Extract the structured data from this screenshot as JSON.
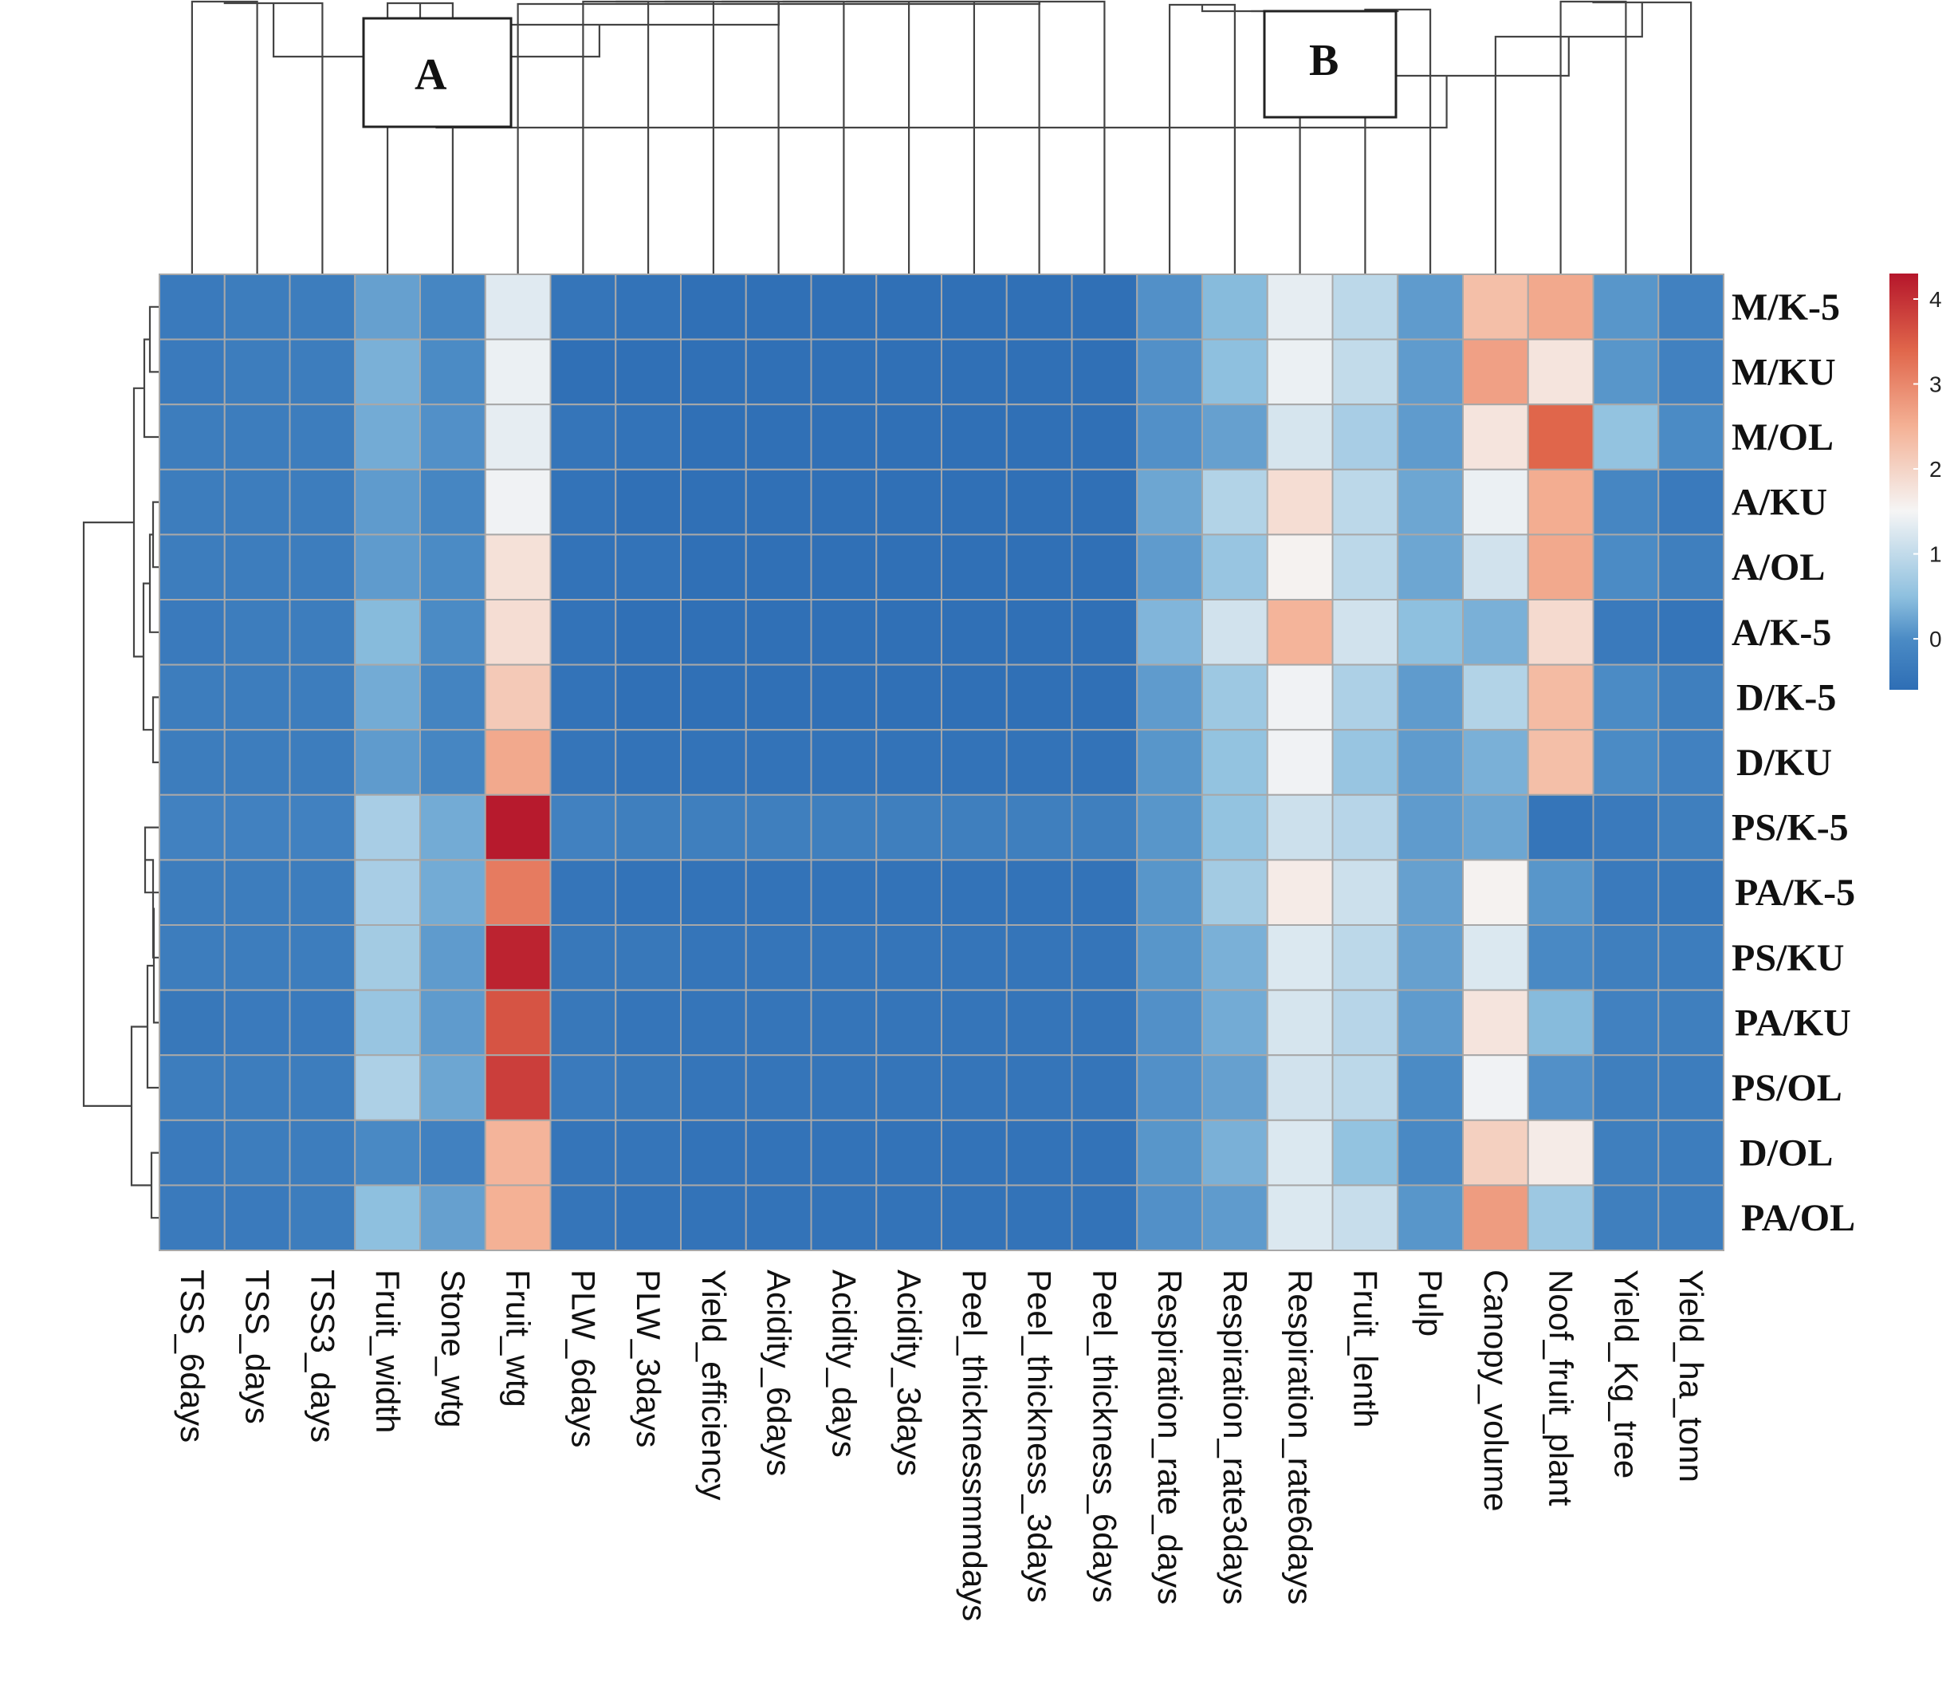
{
  "chart_data": {
    "type": "heatmap",
    "title": "",
    "cluster_labels": [
      "A",
      "B"
    ],
    "columns": [
      "TSS_6days",
      "TSS_days",
      "TSS3_days",
      "Fruit_width",
      "Stone_wtg",
      "Fruit_wtg",
      "PLW_6days",
      "PLW_3days",
      "Yield_efficiency",
      "Acidity_6days",
      "Acidity_days",
      "Acidity_3days",
      "Peel_thicknessmmdays",
      "Peel_thickness_3days",
      "Peel_thickness_6days",
      "Respiration_rate_days",
      "Respiration_rate3days",
      "Respiration_rate6days",
      "Fruit_lenth",
      "Pulp",
      "Canopy_volume",
      "Noof_fruit_plant",
      "Yield_Kg_tree",
      "Yield_ha_tonn"
    ],
    "rows": [
      "M/K-5",
      "M/KU",
      "M/OL",
      "A/KU",
      "A/OL",
      "A/K-5",
      "D/K-5",
      "D/KU",
      "PS/K-5",
      "PA/K-5",
      "PS/KU",
      "PA/KU",
      "PS/OL",
      "D/OL",
      "PA/OL"
    ],
    "values": [
      [
        -0.35,
        -0.3,
        -0.3,
        0.2,
        -0.1,
        1.3,
        -0.45,
        -0.5,
        -0.55,
        -0.55,
        -0.55,
        -0.55,
        -0.55,
        -0.55,
        -0.55,
        0.05,
        0.45,
        1.35,
        0.95,
        0.15,
        2.3,
        2.6,
        0.1,
        -0.2
      ],
      [
        -0.35,
        -0.3,
        -0.3,
        0.35,
        0.0,
        1.4,
        -0.55,
        -0.55,
        -0.55,
        -0.55,
        -0.55,
        -0.55,
        -0.55,
        -0.55,
        -0.55,
        0.05,
        0.5,
        1.4,
        1.0,
        0.15,
        2.7,
        1.75,
        0.1,
        -0.2
      ],
      [
        -0.3,
        -0.3,
        -0.3,
        0.3,
        0.05,
        1.35,
        -0.45,
        -0.5,
        -0.55,
        -0.55,
        -0.55,
        -0.55,
        -0.55,
        -0.55,
        -0.55,
        0.05,
        0.2,
        1.2,
        0.75,
        0.15,
        1.75,
        3.4,
        0.55,
        0.0
      ],
      [
        -0.3,
        -0.3,
        -0.3,
        0.15,
        -0.1,
        1.45,
        -0.5,
        -0.55,
        -0.55,
        -0.55,
        -0.55,
        -0.55,
        -0.55,
        -0.55,
        -0.55,
        0.25,
        0.85,
        1.85,
        0.95,
        0.25,
        1.4,
        2.55,
        -0.1,
        -0.35
      ],
      [
        -0.3,
        -0.3,
        -0.3,
        0.15,
        0.0,
        1.8,
        -0.5,
        -0.5,
        -0.55,
        -0.55,
        -0.55,
        -0.55,
        -0.55,
        -0.55,
        -0.55,
        0.15,
        0.6,
        1.55,
        0.95,
        0.25,
        1.15,
        2.6,
        0.0,
        -0.25
      ],
      [
        -0.35,
        -0.3,
        -0.3,
        0.45,
        0.0,
        1.85,
        -0.5,
        -0.55,
        -0.55,
        -0.55,
        -0.55,
        -0.55,
        -0.55,
        -0.55,
        -0.55,
        0.4,
        1.15,
        2.45,
        1.15,
        0.5,
        0.35,
        1.9,
        -0.35,
        -0.45
      ],
      [
        -0.3,
        -0.3,
        -0.3,
        0.3,
        -0.15,
        2.15,
        -0.5,
        -0.55,
        -0.55,
        -0.55,
        -0.55,
        -0.55,
        -0.55,
        -0.55,
        -0.55,
        0.15,
        0.65,
        1.45,
        0.8,
        0.15,
        0.85,
        2.35,
        0.0,
        -0.25
      ],
      [
        -0.3,
        -0.3,
        -0.3,
        0.15,
        -0.1,
        2.6,
        -0.45,
        -0.5,
        -0.5,
        -0.5,
        -0.5,
        -0.5,
        -0.5,
        -0.5,
        -0.5,
        0.1,
        0.55,
        1.45,
        0.6,
        0.15,
        0.35,
        2.3,
        0.0,
        -0.2
      ],
      [
        -0.2,
        -0.2,
        -0.2,
        0.75,
        0.3,
        4.25,
        -0.2,
        -0.25,
        -0.25,
        -0.25,
        -0.25,
        -0.25,
        -0.25,
        -0.25,
        -0.25,
        0.1,
        0.55,
        1.1,
        0.9,
        0.15,
        0.25,
        -0.45,
        -0.35,
        -0.25
      ],
      [
        -0.3,
        -0.3,
        -0.3,
        0.75,
        0.3,
        3.15,
        -0.45,
        -0.5,
        -0.5,
        -0.5,
        -0.5,
        -0.5,
        -0.5,
        -0.5,
        -0.5,
        0.1,
        0.7,
        1.65,
        1.1,
        0.2,
        1.55,
        0.1,
        -0.35,
        -0.4
      ],
      [
        -0.3,
        -0.3,
        -0.3,
        0.7,
        0.15,
        4.15,
        -0.4,
        -0.4,
        -0.45,
        -0.45,
        -0.45,
        -0.45,
        -0.45,
        -0.45,
        -0.45,
        0.1,
        0.35,
        1.25,
        0.95,
        0.2,
        1.25,
        -0.05,
        -0.25,
        -0.3
      ],
      [
        -0.4,
        -0.35,
        -0.35,
        0.6,
        0.15,
        3.6,
        -0.4,
        -0.45,
        -0.45,
        -0.45,
        -0.45,
        -0.45,
        -0.45,
        -0.45,
        -0.45,
        0.05,
        0.3,
        1.2,
        0.9,
        0.15,
        1.75,
        0.45,
        -0.2,
        -0.25
      ],
      [
        -0.3,
        -0.3,
        -0.3,
        0.8,
        0.25,
        3.85,
        -0.35,
        -0.4,
        -0.45,
        -0.45,
        -0.45,
        -0.45,
        -0.45,
        -0.45,
        -0.45,
        0.05,
        0.2,
        1.15,
        0.95,
        0.0,
        1.45,
        0.05,
        -0.25,
        -0.3
      ],
      [
        -0.35,
        -0.3,
        -0.3,
        -0.05,
        -0.2,
        2.45,
        -0.45,
        -0.45,
        -0.5,
        -0.5,
        -0.5,
        -0.5,
        -0.5,
        -0.5,
        -0.5,
        0.1,
        0.35,
        1.25,
        0.55,
        -0.05,
        2.05,
        1.65,
        -0.25,
        -0.3
      ],
      [
        -0.35,
        -0.35,
        -0.3,
        0.5,
        0.2,
        2.5,
        -0.45,
        -0.5,
        -0.5,
        -0.5,
        -0.5,
        -0.5,
        -0.5,
        -0.5,
        -0.5,
        0.05,
        0.15,
        1.25,
        1.05,
        0.1,
        2.75,
        0.65,
        -0.25,
        -0.3
      ]
    ],
    "color_scale": {
      "min": -0.6,
      "max": 4.3,
      "stops": [
        {
          "value": -0.6,
          "color": "#2e6eb5"
        },
        {
          "value": 0.0,
          "color": "#4b8bc5"
        },
        {
          "value": 0.5,
          "color": "#8ec0df"
        },
        {
          "value": 1.5,
          "color": "#f5f5f5"
        },
        {
          "value": 2.5,
          "color": "#f4b195"
        },
        {
          "value": 3.4,
          "color": "#e0664b"
        },
        {
          "value": 4.3,
          "color": "#b5162b"
        }
      ],
      "ticks": [
        0,
        1,
        2,
        3,
        4
      ],
      "tick_labels": [
        "0",
        "1",
        "2",
        "3",
        "4"
      ]
    }
  }
}
